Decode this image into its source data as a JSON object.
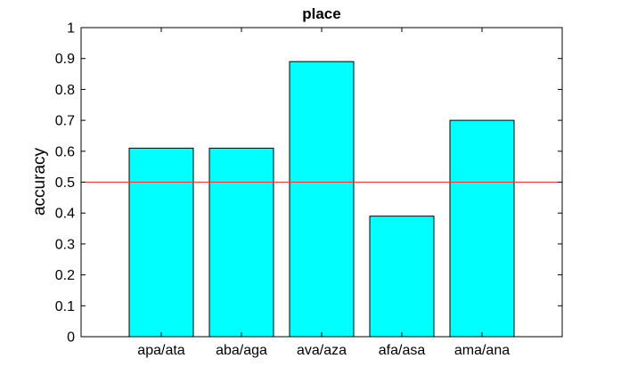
{
  "chart_data": {
    "type": "bar",
    "title": "place",
    "xlabel": "",
    "ylabel": "accuracy",
    "categories": [
      "apa/ata",
      "aba/aga",
      "ava/aza",
      "afa/asa",
      "ama/ana"
    ],
    "values": [
      0.61,
      0.61,
      0.89,
      0.39,
      0.7
    ],
    "ylim": [
      0,
      1
    ],
    "yticks": [
      "0",
      "0.1",
      "0.2",
      "0.3",
      "0.4",
      "0.5",
      "0.6",
      "0.7",
      "0.8",
      "0.9",
      "1"
    ],
    "reference_line": 0.5,
    "bar_color": "#00ffff",
    "bar_edge_color": "#000000",
    "reference_line_color": "#ff3333",
    "grid": false,
    "legend": "none"
  }
}
